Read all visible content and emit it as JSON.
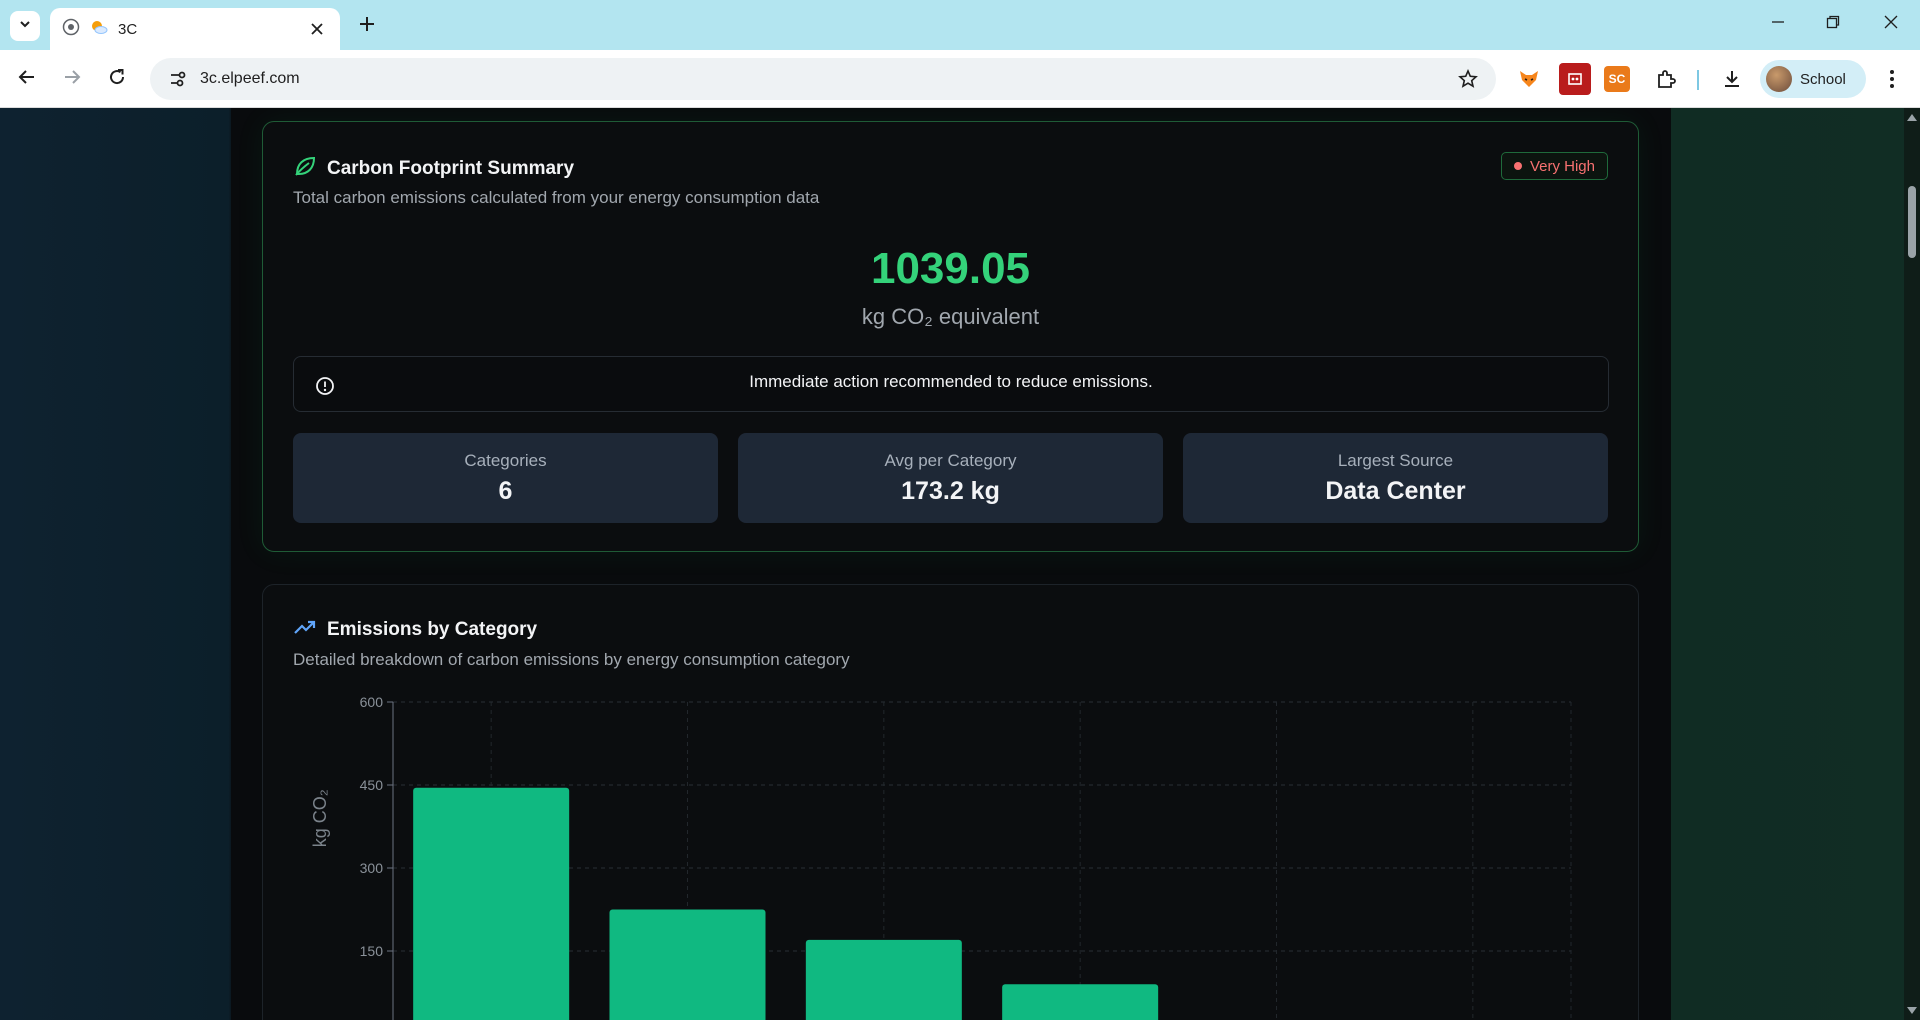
{
  "browser": {
    "tab_title": "3C",
    "url": "3c.elpeef.com",
    "profile_name": "School",
    "extensions": [
      "fox-extension-icon",
      "red-extension-icon",
      "sc-extension-icon",
      "puzzle-icon"
    ],
    "ext_sc_label": "SC"
  },
  "summary": {
    "title": "Carbon Footprint Summary",
    "subtitle": "Total carbon emissions calculated from your energy consumption data",
    "badge": "Very High",
    "total_value": "1039.05",
    "total_unit": "kg CO₂ equivalent",
    "alert": "Immediate action recommended to reduce emissions.",
    "stats": [
      {
        "label": "Categories",
        "value": "6"
      },
      {
        "label": "Avg per Category",
        "value": "173.2 kg"
      },
      {
        "label": "Largest Source",
        "value": "Data Center"
      }
    ]
  },
  "emissions": {
    "title": "Emissions by Category",
    "subtitle": "Detailed breakdown of carbon emissions by energy consumption category"
  },
  "colors": {
    "accent_green": "#34d27a",
    "bar_green": "#10b981",
    "badge_red": "#f87171",
    "trend_blue": "#60a5fa"
  },
  "chart_data": {
    "type": "bar",
    "ylabel": "kg CO₂",
    "ylim": [
      0,
      600
    ],
    "yticks": [
      "600",
      "450",
      "300",
      "150"
    ],
    "visible_bars": 4,
    "values": [
      445,
      225,
      170,
      90
    ],
    "grid": true
  }
}
